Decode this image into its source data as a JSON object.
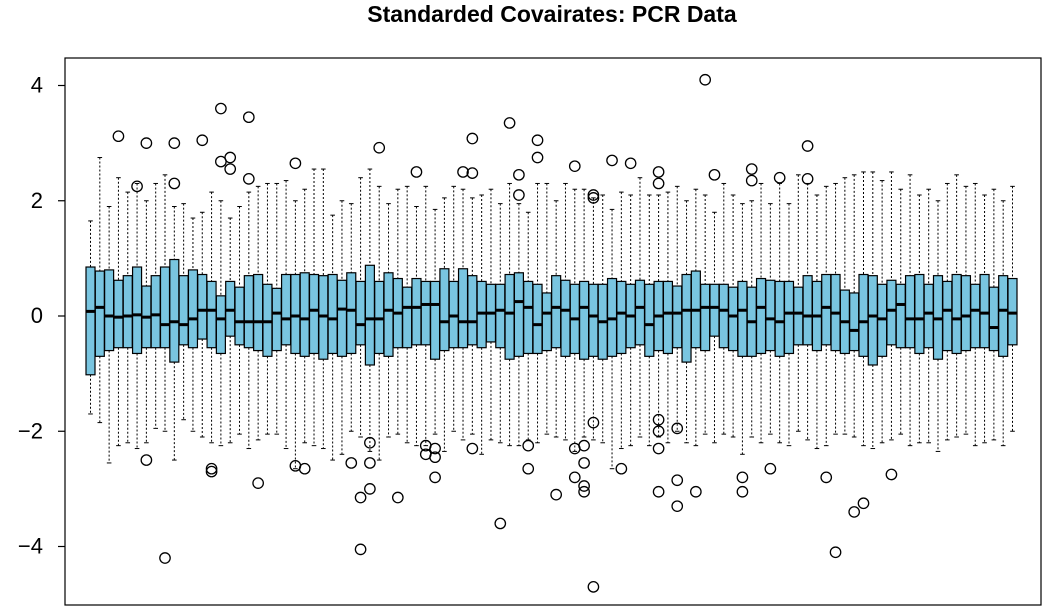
{
  "chart_data": {
    "type": "boxplot",
    "title": "Standarded Covairates:  PCR Data",
    "xlabel": "",
    "ylabel": "",
    "ylim": [
      -5.0,
      4.5
    ],
    "yticks": [
      -4,
      -2,
      0,
      2,
      4
    ],
    "ytick_labels": [
      "−4",
      "−2",
      "0",
      "2",
      "4"
    ],
    "box_fill": "#79c5e0",
    "n_boxes": 100,
    "boxes": [
      {
        "q1": -1.02,
        "median": 0.08,
        "q3": 0.85,
        "lower": -1.7,
        "upper": 1.65
      },
      {
        "q1": -0.7,
        "median": 0.15,
        "q3": 0.78,
        "lower": -1.85,
        "upper": 2.75
      },
      {
        "q1": -0.6,
        "median": 0.0,
        "q3": 0.8,
        "lower": -2.55,
        "upper": 1.9
      },
      {
        "q1": -0.55,
        "median": -0.02,
        "q3": 0.62,
        "lower": -2.25,
        "upper": 2.4
      },
      {
        "q1": -0.55,
        "median": 0.0,
        "q3": 0.7,
        "lower": -2.2,
        "upper": 2.15
      },
      {
        "q1": -0.65,
        "median": 0.02,
        "q3": 0.85,
        "lower": -2.3,
        "upper": 2.3
      },
      {
        "q1": -0.55,
        "median": -0.02,
        "q3": 0.52,
        "lower": -2.2,
        "upper": 2.0
      },
      {
        "q1": -0.55,
        "median": 0.02,
        "q3": 0.7,
        "lower": -1.95,
        "upper": 2.3
      },
      {
        "q1": -0.55,
        "median": -0.15,
        "q3": 0.85,
        "lower": -2.0,
        "upper": 2.45
      },
      {
        "q1": -0.8,
        "median": -0.1,
        "q3": 0.98,
        "lower": -2.5,
        "upper": 1.9
      },
      {
        "q1": -0.5,
        "median": -0.15,
        "q3": 0.7,
        "lower": -1.8,
        "upper": 1.95
      },
      {
        "q1": -0.55,
        "median": -0.05,
        "q3": 0.8,
        "lower": -2.0,
        "upper": 1.7
      },
      {
        "q1": -0.4,
        "median": 0.1,
        "q3": 0.72,
        "lower": -2.1,
        "upper": 1.8
      },
      {
        "q1": -0.55,
        "median": 0.1,
        "q3": 0.6,
        "lower": -2.2,
        "upper": 2.15
      },
      {
        "q1": -0.65,
        "median": -0.05,
        "q3": 0.35,
        "lower": -2.25,
        "upper": 2.0
      },
      {
        "q1": -0.35,
        "median": 0.1,
        "q3": 0.6,
        "lower": -2.2,
        "upper": 1.7
      },
      {
        "q1": -0.5,
        "median": -0.1,
        "q3": 0.5,
        "lower": -2.05,
        "upper": 1.9
      },
      {
        "q1": -0.55,
        "median": -0.1,
        "q3": 0.7,
        "lower": -2.3,
        "upper": 2.15
      },
      {
        "q1": -0.6,
        "median": -0.1,
        "q3": 0.72,
        "lower": -2.15,
        "upper": 2.25
      },
      {
        "q1": -0.7,
        "median": -0.1,
        "q3": 0.55,
        "lower": -2.05,
        "upper": 2.3
      },
      {
        "q1": -0.6,
        "median": 0.05,
        "q3": 0.48,
        "lower": -2.05,
        "upper": 2.3
      },
      {
        "q1": -0.5,
        "median": -0.05,
        "q3": 0.72,
        "lower": -2.3,
        "upper": 2.35
      },
      {
        "q1": -0.65,
        "median": 0.0,
        "q3": 0.72,
        "lower": -2.65,
        "upper": 2.0
      },
      {
        "q1": -0.7,
        "median": -0.05,
        "q3": 0.75,
        "lower": -2.2,
        "upper": 2.2
      },
      {
        "q1": -0.65,
        "median": 0.1,
        "q3": 0.72,
        "lower": -2.25,
        "upper": 2.55
      },
      {
        "q1": -0.75,
        "median": 0.0,
        "q3": 0.7,
        "lower": -2.3,
        "upper": 2.55
      },
      {
        "q1": -0.65,
        "median": -0.05,
        "q3": 0.72,
        "lower": -2.5,
        "upper": 1.75
      },
      {
        "q1": -0.7,
        "median": 0.12,
        "q3": 0.62,
        "lower": -2.4,
        "upper": 2.0
      },
      {
        "q1": -0.65,
        "median": 0.1,
        "q3": 0.75,
        "lower": -2.0,
        "upper": 1.95
      },
      {
        "q1": -0.5,
        "median": -0.15,
        "q3": 0.6,
        "lower": -2.1,
        "upper": 2.4
      },
      {
        "q1": -0.85,
        "median": -0.05,
        "q3": 0.88,
        "lower": -2.35,
        "upper": 2.55
      },
      {
        "q1": -0.65,
        "median": -0.05,
        "q3": 0.6,
        "lower": -2.5,
        "upper": 2.25
      },
      {
        "q1": -0.7,
        "median": 0.1,
        "q3": 0.75,
        "lower": -2.1,
        "upper": 1.95
      },
      {
        "q1": -0.55,
        "median": 0.05,
        "q3": 0.65,
        "lower": -2.05,
        "upper": 2.2
      },
      {
        "q1": -0.55,
        "median": 0.15,
        "q3": 0.5,
        "lower": -2.2,
        "upper": 2.25
      },
      {
        "q1": -0.5,
        "median": 0.15,
        "q3": 0.65,
        "lower": -2.25,
        "upper": 1.9
      },
      {
        "q1": -0.5,
        "median": 0.2,
        "q3": 0.6,
        "lower": -2.25,
        "upper": 2.25
      },
      {
        "q1": -0.75,
        "median": 0.2,
        "q3": 0.6,
        "lower": -2.05,
        "upper": 1.85
      },
      {
        "q1": -0.6,
        "median": -0.1,
        "q3": 0.82,
        "lower": -2.35,
        "upper": 2.05
      },
      {
        "q1": -0.55,
        "median": 0.0,
        "q3": 0.6,
        "lower": -2.0,
        "upper": 2.25
      },
      {
        "q1": -0.55,
        "median": -0.1,
        "q3": 0.82,
        "lower": -2.15,
        "upper": 2.2
      },
      {
        "q1": -0.5,
        "median": -0.1,
        "q3": 0.7,
        "lower": -2.05,
        "upper": 2.05
      },
      {
        "q1": -0.55,
        "median": 0.05,
        "q3": 0.6,
        "lower": -2.4,
        "upper": 2.1
      },
      {
        "q1": -0.45,
        "median": 0.05,
        "q3": 0.55,
        "lower": -2.15,
        "upper": 2.2
      },
      {
        "q1": -0.55,
        "median": 0.1,
        "q3": 0.55,
        "lower": -2.2,
        "upper": 1.95
      },
      {
        "q1": -0.75,
        "median": 0.05,
        "q3": 0.72,
        "lower": -2.25,
        "upper": 2.3
      },
      {
        "q1": -0.7,
        "median": 0.25,
        "q3": 0.75,
        "lower": -2.25,
        "upper": 1.95
      },
      {
        "q1": -0.65,
        "median": 0.15,
        "q3": 0.6,
        "lower": -2.15,
        "upper": 1.8
      },
      {
        "q1": -0.65,
        "median": -0.15,
        "q3": 0.55,
        "lower": -2.2,
        "upper": 2.3
      },
      {
        "q1": -0.6,
        "median": 0.05,
        "q3": 0.4,
        "lower": -2.05,
        "upper": 2.3
      },
      {
        "q1": -0.55,
        "median": 0.15,
        "q3": 0.7,
        "lower": -2.1,
        "upper": 2.0
      },
      {
        "q1": -0.7,
        "median": 0.1,
        "q3": 0.62,
        "lower": -2.15,
        "upper": 2.3
      },
      {
        "q1": -0.65,
        "median": -0.05,
        "q3": 0.55,
        "lower": -2.35,
        "upper": 2.2
      },
      {
        "q1": -0.75,
        "median": 0.15,
        "q3": 0.6,
        "lower": -2.1,
        "upper": 2.2
      },
      {
        "q1": -0.7,
        "median": 0.0,
        "q3": 0.55,
        "lower": -2.15,
        "upper": 2.05
      },
      {
        "q1": -0.75,
        "median": -0.1,
        "q3": 0.55,
        "lower": -2.2,
        "upper": 2.1
      },
      {
        "q1": -0.7,
        "median": -0.05,
        "q3": 0.65,
        "lower": -2.65,
        "upper": 1.85
      },
      {
        "q1": -0.65,
        "median": 0.05,
        "q3": 0.6,
        "lower": -2.3,
        "upper": 2.15
      },
      {
        "q1": -0.55,
        "median": 0.0,
        "q3": 0.55,
        "lower": -2.25,
        "upper": 2.1
      },
      {
        "q1": -0.5,
        "median": 0.15,
        "q3": 0.62,
        "lower": -2.1,
        "upper": 2.4
      },
      {
        "q1": -0.7,
        "median": -0.15,
        "q3": 0.55,
        "lower": -2.25,
        "upper": 2.1
      },
      {
        "q1": -0.6,
        "median": 0.0,
        "q3": 0.6,
        "lower": -2.1,
        "upper": 2.1
      },
      {
        "q1": -0.65,
        "median": 0.05,
        "q3": 0.6,
        "lower": -2.2,
        "upper": 2.15
      },
      {
        "q1": -0.55,
        "median": 0.05,
        "q3": 0.52,
        "lower": -2.0,
        "upper": 2.25
      },
      {
        "q1": -0.8,
        "median": 0.1,
        "q3": 0.72,
        "lower": -2.2,
        "upper": 2.0
      },
      {
        "q1": -0.55,
        "median": 0.1,
        "q3": 0.78,
        "lower": -2.25,
        "upper": 2.2
      },
      {
        "q1": -0.6,
        "median": 0.15,
        "q3": 0.55,
        "lower": -2.05,
        "upper": 2.1
      },
      {
        "q1": -0.35,
        "median": 0.15,
        "q3": 0.55,
        "lower": -2.2,
        "upper": 1.8
      },
      {
        "q1": -0.55,
        "median": 0.1,
        "q3": 0.55,
        "lower": -2.05,
        "upper": 2.3
      },
      {
        "q1": -0.6,
        "median": 0.0,
        "q3": 0.5,
        "lower": -2.1,
        "upper": 2.1
      },
      {
        "q1": -0.7,
        "median": 0.1,
        "q3": 0.6,
        "lower": -2.4,
        "upper": 1.95
      },
      {
        "q1": -0.7,
        "median": -0.1,
        "q3": 0.5,
        "lower": -2.1,
        "upper": 2.0
      },
      {
        "q1": -0.65,
        "median": 0.15,
        "q3": 0.65,
        "lower": -2.2,
        "upper": 2.3
      },
      {
        "q1": -0.6,
        "median": -0.05,
        "q3": 0.62,
        "lower": -2.05,
        "upper": 1.95
      },
      {
        "q1": -0.7,
        "median": -0.1,
        "q3": 0.6,
        "lower": -2.2,
        "upper": 2.3
      },
      {
        "q1": -0.65,
        "median": 0.05,
        "q3": 0.6,
        "lower": -2.25,
        "upper": 1.95
      },
      {
        "q1": -0.5,
        "median": 0.05,
        "q3": 0.5,
        "lower": -2.0,
        "upper": 2.45
      },
      {
        "q1": -0.5,
        "median": 0.0,
        "q3": 0.7,
        "lower": -2.15,
        "upper": 2.3
      },
      {
        "q1": -0.6,
        "median": 0.0,
        "q3": 0.6,
        "lower": -2.3,
        "upper": 2.1
      },
      {
        "q1": -0.5,
        "median": 0.15,
        "q3": 0.72,
        "lower": -2.25,
        "upper": 2.25
      },
      {
        "q1": -0.6,
        "median": 0.05,
        "q3": 0.72,
        "lower": -2.05,
        "upper": 2.3
      },
      {
        "q1": -0.65,
        "median": -0.1,
        "q3": 0.45,
        "lower": -2.05,
        "upper": 2.4
      },
      {
        "q1": -0.6,
        "median": -0.25,
        "q3": 0.4,
        "lower": -2.1,
        "upper": 2.45
      },
      {
        "q1": -0.7,
        "median": -0.1,
        "q3": 0.72,
        "lower": -2.25,
        "upper": 2.5
      },
      {
        "q1": -0.85,
        "median": 0.0,
        "q3": 0.7,
        "lower": -2.3,
        "upper": 2.5
      },
      {
        "q1": -0.7,
        "median": -0.05,
        "q3": 0.55,
        "lower": -2.2,
        "upper": 2.35
      },
      {
        "q1": -0.5,
        "median": 0.1,
        "q3": 0.62,
        "lower": -2.15,
        "upper": 2.5
      },
      {
        "q1": -0.55,
        "median": 0.2,
        "q3": 0.55,
        "lower": -2.05,
        "upper": 2.2
      },
      {
        "q1": -0.55,
        "median": -0.05,
        "q3": 0.7,
        "lower": -2.25,
        "upper": 2.45
      },
      {
        "q1": -0.65,
        "median": -0.05,
        "q3": 0.72,
        "lower": -2.2,
        "upper": 2.1
      },
      {
        "q1": -0.55,
        "median": 0.05,
        "q3": 0.55,
        "lower": -2.2,
        "upper": 2.2
      },
      {
        "q1": -0.75,
        "median": -0.05,
        "q3": 0.7,
        "lower": -2.35,
        "upper": 2.0
      },
      {
        "q1": -0.6,
        "median": 0.1,
        "q3": 0.6,
        "lower": -2.15,
        "upper": 2.3
      },
      {
        "q1": -0.65,
        "median": -0.05,
        "q3": 0.72,
        "lower": -2.1,
        "upper": 2.45
      },
      {
        "q1": -0.6,
        "median": 0.0,
        "q3": 0.7,
        "lower": -2.05,
        "upper": 2.25
      },
      {
        "q1": -0.55,
        "median": 0.1,
        "q3": 0.55,
        "lower": -2.25,
        "upper": 2.3
      },
      {
        "q1": -0.55,
        "median": 0.05,
        "q3": 0.72,
        "lower": -2.2,
        "upper": 2.1
      },
      {
        "q1": -0.6,
        "median": -0.2,
        "q3": 0.5,
        "lower": -2.15,
        "upper": 2.2
      },
      {
        "q1": -0.7,
        "median": 0.1,
        "q3": 0.7,
        "lower": -2.25,
        "upper": 2.0
      },
      {
        "q1": -0.5,
        "median": 0.05,
        "q3": 0.65,
        "lower": -2.0,
        "upper": 2.25
      }
    ],
    "outliers": [
      {
        "box": 3,
        "y": 3.12
      },
      {
        "box": 5,
        "y": 2.25
      },
      {
        "box": 6,
        "y": 3.0
      },
      {
        "box": 6,
        "y": -2.5
      },
      {
        "box": 8,
        "y": -4.2
      },
      {
        "box": 9,
        "y": 3.0
      },
      {
        "box": 9,
        "y": 2.3
      },
      {
        "box": 12,
        "y": 3.05
      },
      {
        "box": 13,
        "y": -2.65
      },
      {
        "box": 13,
        "y": -2.7
      },
      {
        "box": 14,
        "y": 3.6
      },
      {
        "box": 14,
        "y": 2.68
      },
      {
        "box": 15,
        "y": 2.75
      },
      {
        "box": 15,
        "y": 2.55
      },
      {
        "box": 17,
        "y": 3.45
      },
      {
        "box": 17,
        "y": 2.38
      },
      {
        "box": 18,
        "y": -2.9
      },
      {
        "box": 22,
        "y": 2.65
      },
      {
        "box": 22,
        "y": -2.6
      },
      {
        "box": 23,
        "y": -2.65
      },
      {
        "box": 28,
        "y": -2.55
      },
      {
        "box": 29,
        "y": -3.15
      },
      {
        "box": 29,
        "y": -4.05
      },
      {
        "box": 30,
        "y": -2.2
      },
      {
        "box": 30,
        "y": -2.55
      },
      {
        "box": 30,
        "y": -3.0
      },
      {
        "box": 31,
        "y": 2.92
      },
      {
        "box": 33,
        "y": -3.15
      },
      {
        "box": 35,
        "y": 2.5
      },
      {
        "box": 36,
        "y": -2.25
      },
      {
        "box": 36,
        "y": -2.4
      },
      {
        "box": 37,
        "y": -2.3
      },
      {
        "box": 37,
        "y": -2.45
      },
      {
        "box": 37,
        "y": -2.8
      },
      {
        "box": 40,
        "y": 2.5
      },
      {
        "box": 41,
        "y": 3.08
      },
      {
        "box": 41,
        "y": 2.48
      },
      {
        "box": 41,
        "y": -2.3
      },
      {
        "box": 44,
        "y": -3.6
      },
      {
        "box": 45,
        "y": 3.35
      },
      {
        "box": 46,
        "y": 2.45
      },
      {
        "box": 46,
        "y": 2.1
      },
      {
        "box": 47,
        "y": -2.25
      },
      {
        "box": 47,
        "y": -2.65
      },
      {
        "box": 48,
        "y": 3.05
      },
      {
        "box": 48,
        "y": 2.75
      },
      {
        "box": 50,
        "y": -3.1
      },
      {
        "box": 52,
        "y": 2.6
      },
      {
        "box": 52,
        "y": -2.3
      },
      {
        "box": 52,
        "y": -2.8
      },
      {
        "box": 53,
        "y": -2.25
      },
      {
        "box": 53,
        "y": -2.55
      },
      {
        "box": 53,
        "y": -2.95
      },
      {
        "box": 53,
        "y": -3.05
      },
      {
        "box": 54,
        "y": 2.1
      },
      {
        "box": 54,
        "y": 2.05
      },
      {
        "box": 54,
        "y": -1.85
      },
      {
        "box": 54,
        "y": -4.7
      },
      {
        "box": 56,
        "y": 2.7
      },
      {
        "box": 57,
        "y": -2.65
      },
      {
        "box": 58,
        "y": 2.65
      },
      {
        "box": 61,
        "y": 2.5
      },
      {
        "box": 61,
        "y": 2.3
      },
      {
        "box": 61,
        "y": -1.8
      },
      {
        "box": 61,
        "y": -2.0
      },
      {
        "box": 61,
        "y": -2.3
      },
      {
        "box": 61,
        "y": -3.05
      },
      {
        "box": 63,
        "y": -1.95
      },
      {
        "box": 63,
        "y": -2.85
      },
      {
        "box": 63,
        "y": -3.3
      },
      {
        "box": 65,
        "y": -3.05
      },
      {
        "box": 66,
        "y": 4.1
      },
      {
        "box": 67,
        "y": 2.45
      },
      {
        "box": 70,
        "y": -2.8
      },
      {
        "box": 70,
        "y": -3.05
      },
      {
        "box": 71,
        "y": 2.55
      },
      {
        "box": 71,
        "y": 2.35
      },
      {
        "box": 73,
        "y": -2.65
      },
      {
        "box": 74,
        "y": 2.4
      },
      {
        "box": 77,
        "y": 2.95
      },
      {
        "box": 77,
        "y": 2.38
      },
      {
        "box": 79,
        "y": -2.8
      },
      {
        "box": 80,
        "y": -4.1
      },
      {
        "box": 82,
        "y": -3.4
      },
      {
        "box": 83,
        "y": -3.25
      },
      {
        "box": 86,
        "y": -2.75
      }
    ]
  }
}
